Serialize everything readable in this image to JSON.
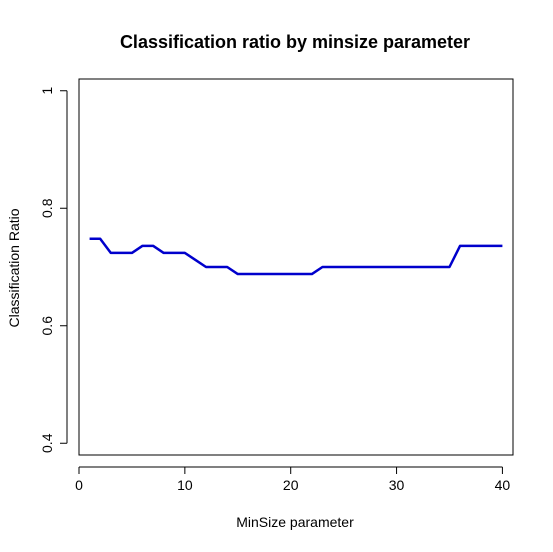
{
  "chart_data": {
    "type": "line",
    "title": "Classification ratio by minsize parameter",
    "xlabel": "MinSize parameter",
    "ylabel": "Classification Ratio",
    "xlim": [
      0,
      41
    ],
    "ylim": [
      0.38,
      1.02
    ],
    "xticks": [
      0,
      10,
      20,
      30,
      40
    ],
    "xtick_labels": [
      "0",
      "10",
      "20",
      "30",
      "40"
    ],
    "yticks": [
      0.4,
      0.6,
      0.8,
      1.0
    ],
    "ytick_labels": [
      "0.4",
      "0.6",
      "0.8",
      "1"
    ],
    "grid": false,
    "legend": "none",
    "color": "#0000cc",
    "series": [
      {
        "x": [
          1,
          2,
          3,
          4,
          5,
          6,
          7,
          8,
          9,
          10,
          11,
          12,
          13,
          14,
          15,
          16,
          17,
          18,
          19,
          20,
          21,
          22,
          23,
          24,
          25,
          26,
          27,
          28,
          29,
          30,
          31,
          32,
          33,
          34,
          35,
          36,
          37,
          38,
          39,
          40
        ],
        "values": [
          0.748,
          0.748,
          0.724,
          0.724,
          0.724,
          0.736,
          0.736,
          0.724,
          0.724,
          0.724,
          0.712,
          0.7,
          0.7,
          0.7,
          0.688,
          0.688,
          0.688,
          0.688,
          0.688,
          0.688,
          0.688,
          0.688,
          0.7,
          0.7,
          0.7,
          0.7,
          0.7,
          0.7,
          0.7,
          0.7,
          0.7,
          0.7,
          0.7,
          0.7,
          0.7,
          0.736,
          0.736,
          0.736,
          0.736,
          0.736
        ]
      }
    ]
  }
}
